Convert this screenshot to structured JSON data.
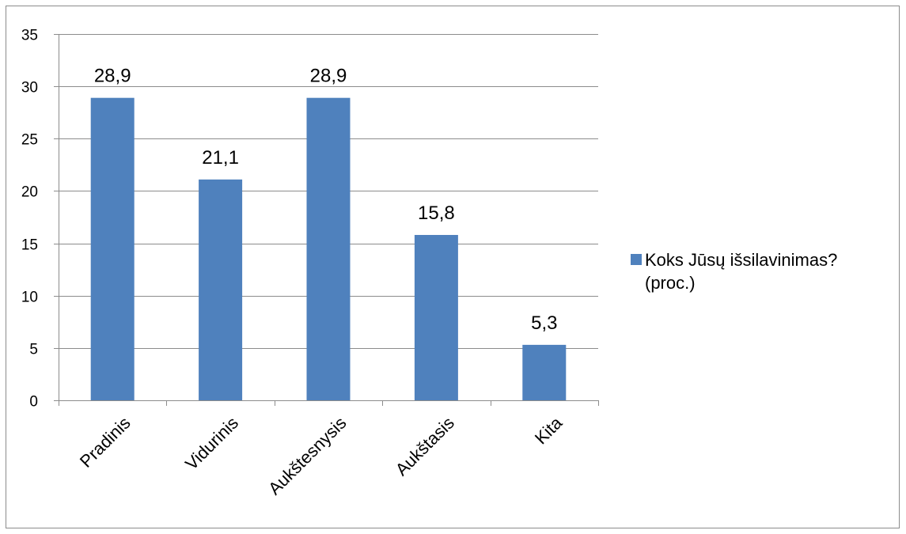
{
  "chart_data": {
    "type": "bar",
    "categories": [
      "Pradinis",
      "Vidurinis",
      "Aukštesnysis",
      "Aukštasis",
      "Kita"
    ],
    "series": [
      {
        "name": "Koks Jūsų išsilavinimas? (proc.)",
        "legend_lines": [
          "Koks Jūsų išsilavinimas?",
          "(proc.)"
        ],
        "values": [
          28.9,
          21.1,
          28.9,
          15.8,
          5.3
        ],
        "value_labels": [
          "28,9",
          "21,1",
          "28,9",
          "15,8",
          "5,3"
        ],
        "color": "#4f81bd"
      }
    ],
    "ylim": [
      0,
      35
    ],
    "yticks": [
      0,
      5,
      10,
      15,
      20,
      25,
      30,
      35
    ],
    "grid": true,
    "legend_position": "right"
  }
}
